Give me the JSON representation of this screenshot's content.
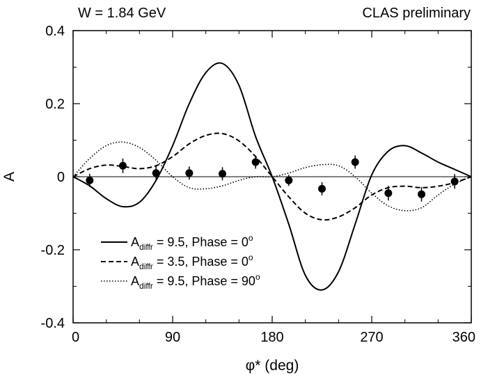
{
  "chart_data": {
    "type": "line",
    "title_left": "W = 1.84 GeV",
    "title_right": "CLAS preliminary",
    "xlabel": "φ* (deg)",
    "ylabel": "A",
    "xlim": [
      0,
      360
    ],
    "ylim": [
      -0.4,
      0.4
    ],
    "x_ticks": [
      0,
      90,
      180,
      270,
      360
    ],
    "x_tick_labels": [
      "0",
      "90",
      "180",
      "270",
      "360"
    ],
    "y_ticks": [
      0.4,
      0.2,
      0,
      -0.2,
      -0.4
    ],
    "y_tick_labels": [
      "0.4",
      "0.2",
      "0",
      "-0.2",
      "-0.4"
    ],
    "legend_position": "bottom-left",
    "grid": false,
    "series": [
      {
        "name": "A_diffr = 9.5, Phase = 0°",
        "legend_main": "A",
        "legend_sub": "diffr",
        "legend_rest": " = 9.5, Phase = 0",
        "legend_sup": "o",
        "style": "solid",
        "x": [
          0,
          15,
          30,
          45,
          60,
          75,
          90,
          105,
          120,
          135,
          150,
          165,
          180,
          195,
          210,
          225,
          240,
          255,
          270,
          285,
          300,
          315,
          330,
          345,
          360
        ],
        "y": [
          0,
          -0.025,
          -0.06,
          -0.082,
          -0.07,
          -0.01,
          0.085,
          0.2,
          0.285,
          0.31,
          0.25,
          0.11,
          0,
          -0.13,
          -0.27,
          -0.31,
          -0.26,
          -0.13,
          0.005,
          0.07,
          0.085,
          0.065,
          0.04,
          0.02,
          0
        ]
      },
      {
        "name": "A_diffr = 3.5, Phase = 0°",
        "legend_main": "A",
        "legend_sub": "diffr",
        "legend_rest": " = 3.5, Phase = 0",
        "legend_sup": "o",
        "style": "dashed",
        "x": [
          0,
          15,
          30,
          45,
          60,
          75,
          90,
          105,
          120,
          135,
          150,
          165,
          180,
          195,
          210,
          225,
          240,
          255,
          270,
          285,
          300,
          315,
          330,
          345,
          360
        ],
        "y": [
          0,
          0.022,
          0.032,
          0.028,
          0.022,
          0.03,
          0.055,
          0.09,
          0.113,
          0.118,
          0.098,
          0.055,
          0,
          -0.055,
          -0.1,
          -0.118,
          -0.11,
          -0.085,
          -0.05,
          -0.03,
          -0.026,
          -0.03,
          -0.026,
          -0.016,
          0
        ]
      },
      {
        "name": "A_diffr = 9.5, Phase = 90°",
        "legend_main": "A",
        "legend_sub": "diffr",
        "legend_rest": " = 9.5, Phase = 90",
        "legend_sup": "o",
        "style": "dotted",
        "x": [
          0,
          15,
          30,
          45,
          60,
          75,
          90,
          105,
          120,
          135,
          150,
          165,
          180,
          195,
          210,
          225,
          240,
          255,
          270,
          285,
          300,
          315,
          330,
          345,
          360
        ],
        "y": [
          0,
          0.05,
          0.085,
          0.095,
          0.08,
          0.045,
          0,
          -0.03,
          -0.033,
          -0.025,
          -0.01,
          0.0,
          0,
          0.01,
          0.025,
          0.033,
          0.03,
          0.0,
          -0.045,
          -0.08,
          -0.093,
          -0.085,
          -0.05,
          -0.02,
          0
        ]
      },
      {
        "name": "data",
        "style": "points",
        "x": [
          15,
          45,
          75,
          105,
          135,
          165,
          195,
          225,
          255,
          285,
          315,
          345
        ],
        "y": [
          -0.01,
          0.03,
          0.01,
          0.01,
          0.008,
          0.04,
          -0.01,
          -0.033,
          0.04,
          -0.045,
          -0.048,
          -0.013
        ],
        "err": [
          0.018,
          0.02,
          0.02,
          0.018,
          0.018,
          0.018,
          0.015,
          0.018,
          0.018,
          0.02,
          0.02,
          0.02
        ]
      }
    ]
  }
}
